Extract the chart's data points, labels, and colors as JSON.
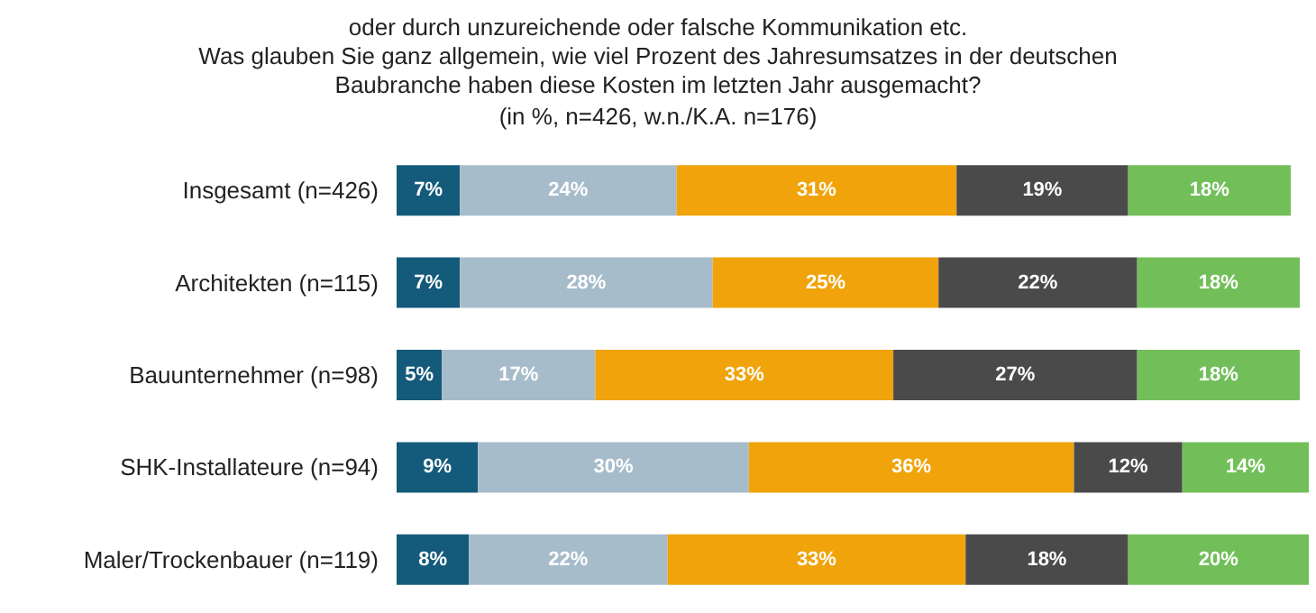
{
  "chart_data": {
    "type": "bar",
    "orientation": "horizontal",
    "stacked": true,
    "title": "oder durch unzureichende oder falsche Kommunikation etc.\nWas glauben Sie ganz allgemein, wie viel Prozent des Jahresumsatzes in der deutschen\nBaubranche haben diese Kosten im letzten Jahr ausgemacht?",
    "subtitle": "(in %, n=426, w.n./K.A. n=176)",
    "categories": [
      "Insgesamt (n=426)",
      "Architekten (n=115)",
      "Bauunternehmer (n=98)",
      "SHK-Installateure (n=94)",
      "Maler/Trockenbauer (n=119)"
    ],
    "tick_labels": "y",
    "series": [
      {
        "color": "#145a7a",
        "values": [
          7,
          7,
          5,
          9,
          8
        ],
        "value_labels": [
          "7%",
          "7%",
          "5%",
          "9%",
          "8%"
        ]
      },
      {
        "color": "#a7bccb",
        "values": [
          24,
          28,
          17,
          30,
          22
        ],
        "value_labels": [
          "24%",
          "28%",
          "17%",
          "30%",
          "22%"
        ]
      },
      {
        "color": "#f0a30a",
        "values": [
          31,
          25,
          33,
          36,
          33
        ],
        "value_labels": [
          "31%",
          "25%",
          "33%",
          "36%",
          "33%"
        ]
      },
      {
        "color": "#4a4a4a",
        "values": [
          19,
          22,
          27,
          12,
          18
        ],
        "value_labels": [
          "19%",
          "22%",
          "27%",
          "12%",
          "18%"
        ]
      },
      {
        "color": "#72bf5a",
        "values": [
          18,
          18,
          18,
          14,
          20
        ],
        "value_labels": [
          "18%",
          "18%",
          "18%",
          "14%",
          "20%"
        ]
      }
    ]
  }
}
